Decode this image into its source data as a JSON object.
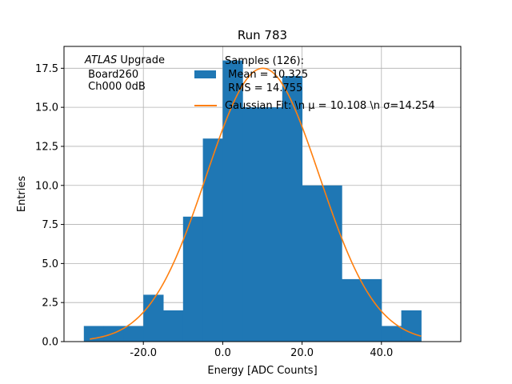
{
  "chart_data": {
    "type": "bar",
    "title": "Run 783",
    "xlabel": "Energy [ADC Counts]",
    "ylabel": "Entries",
    "xlim": [
      -40,
      60
    ],
    "ylim": [
      0,
      18.9
    ],
    "x_ticks": [
      -20,
      0,
      20,
      40
    ],
    "x_tick_labels": [
      "-20.0",
      "0.0",
      "20.0",
      "40.0"
    ],
    "y_ticks": [
      0,
      2.5,
      5,
      7.5,
      10,
      12.5,
      15,
      17.5
    ],
    "y_tick_labels": [
      "0.0",
      "2.5",
      "5.0",
      "7.5",
      "10.0",
      "12.5",
      "15.0",
      "17.5"
    ],
    "grid": true,
    "bar_color": "#1f77b4",
    "fit_color": "#ff7f0e",
    "histogram": {
      "bin_edges": [
        -35,
        -30,
        -25,
        -20,
        -15,
        -10,
        -5,
        0,
        5,
        10,
        15,
        20,
        25,
        30,
        35,
        40,
        45,
        50
      ],
      "counts": [
        1,
        1,
        1,
        3,
        2,
        8,
        13,
        18,
        15,
        15,
        17,
        10,
        10,
        4,
        4,
        1,
        2
      ]
    },
    "fit": {
      "type": "gaussian",
      "amplitude": 17.5,
      "mean": 10.108,
      "sigma": 14.254,
      "x_range": [
        -33.5,
        50
      ]
    },
    "annotation": {
      "italic_part": "ATLAS",
      "rest_part": " Upgrade",
      "lines": [
        " Board260",
        " Ch000 0dB"
      ]
    },
    "legend": {
      "placement": "upper-right",
      "histogram_lines": [
        "Samples (126):",
        " Mean = 10.325",
        " RMS = 14.755"
      ],
      "fit_label": "Gaussian Fit: \\n μ = 10.108 \\n σ=14.254"
    }
  }
}
